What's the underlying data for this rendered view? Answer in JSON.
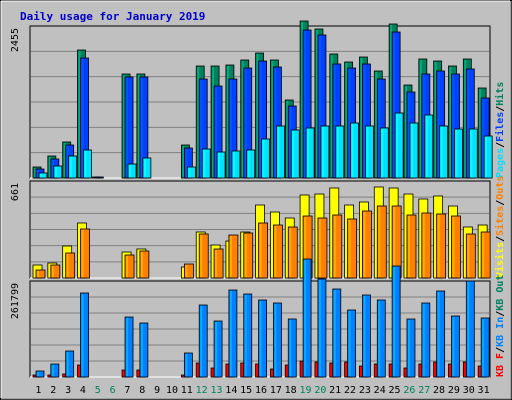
{
  "title": "Daily usage for January 2019",
  "colors": {
    "frame_bg": "#c0c0c0",
    "plot_bg": "#c0c0c0",
    "title_text": "#0000cc",
    "hits": "#00805c",
    "files": "#0040ff",
    "pages": "#00e0ff",
    "visits": "#ffff00",
    "sites": "#ff8000",
    "kbin": "#0080ff",
    "kbout": "#ff0000",
    "weekday_label": "#000000",
    "weekend_label": "#00805c"
  },
  "chart_data": [
    {
      "type": "bar",
      "panel": "requests",
      "ymax_label": "2455",
      "ymax": 2455,
      "legend": [
        "Pages",
        "Files",
        "Hits"
      ],
      "x": [
        1,
        2,
        3,
        4,
        5,
        6,
        7,
        8,
        9,
        10,
        11,
        12,
        13,
        14,
        15,
        16,
        17,
        18,
        19,
        20,
        21,
        22,
        23,
        24,
        25,
        26,
        27,
        28,
        29,
        30,
        31
      ],
      "series": [
        {
          "name": "Hits",
          "values": [
            180,
            365,
            600,
            2120,
            20,
            0,
            1720,
            1720,
            0,
            0,
            540,
            1860,
            1850,
            1880,
            1950,
            2080,
            1950,
            1300,
            2610,
            2470,
            2060,
            1930,
            2010,
            1770,
            2560,
            1540,
            1980,
            1940,
            1850,
            1980,
            1500
          ]
        },
        {
          "name": "Files",
          "values": [
            150,
            310,
            550,
            1990,
            20,
            0,
            1670,
            1680,
            0,
            0,
            500,
            1640,
            1530,
            1650,
            1820,
            1940,
            1840,
            1200,
            2460,
            2380,
            1890,
            1820,
            1890,
            1650,
            2420,
            1430,
            1730,
            1780,
            1730,
            1800,
            1330
          ]
        },
        {
          "name": "Pages",
          "values": [
            90,
            200,
            360,
            460,
            0,
            0,
            230,
            330,
            0,
            0,
            190,
            480,
            430,
            440,
            470,
            640,
            870,
            790,
            830,
            860,
            870,
            910,
            860,
            830,
            1080,
            920,
            1040,
            870,
            810,
            810,
            700
          ]
        }
      ]
    },
    {
      "type": "bar",
      "panel": "visitors",
      "ymax_label": "661",
      "ymax": 661,
      "legend": [
        "Visits",
        "Sites",
        "Outs"
      ],
      "x": [
        1,
        2,
        3,
        4,
        5,
        6,
        7,
        8,
        9,
        10,
        11,
        12,
        13,
        14,
        15,
        16,
        17,
        18,
        19,
        20,
        21,
        22,
        23,
        24,
        25,
        26,
        27,
        28,
        29,
        30,
        31
      ],
      "series": [
        {
          "name": "Visits",
          "values": [
            90,
            105,
            230,
            390,
            0,
            0,
            185,
            205,
            0,
            0,
            80,
            330,
            235,
            260,
            330,
            520,
            470,
            430,
            590,
            595,
            640,
            520,
            540,
            650,
            640,
            600,
            560,
            585,
            510,
            360,
            380
          ]
        },
        {
          "name": "Sites",
          "values": [
            60,
            90,
            175,
            345,
            0,
            0,
            165,
            190,
            0,
            0,
            100,
            310,
            205,
            305,
            320,
            390,
            375,
            360,
            440,
            430,
            445,
            420,
            475,
            510,
            510,
            450,
            460,
            455,
            440,
            310,
            330
          ]
        }
      ]
    },
    {
      "type": "bar",
      "panel": "kbytes",
      "ymax_label": "261799",
      "ymax": 261799,
      "legend": [
        "KB F",
        "KB In",
        "KB Out"
      ],
      "x": [
        1,
        2,
        3,
        4,
        5,
        6,
        7,
        8,
        9,
        10,
        11,
        12,
        13,
        14,
        15,
        16,
        17,
        18,
        19,
        20,
        21,
        22,
        23,
        24,
        25,
        26,
        27,
        28,
        29,
        30,
        31
      ],
      "series": [
        {
          "name": "KB F",
          "values": [
            5000,
            6000,
            9000,
            35000,
            0,
            0,
            19000,
            19000,
            0,
            0,
            6000,
            39000,
            25000,
            38000,
            40000,
            38000,
            23000,
            35000,
            45000,
            42000,
            40000,
            43000,
            30000,
            37000,
            38000,
            25000,
            38000,
            42000,
            36000,
            44000,
            32000
          ]
        },
        {
          "name": "KB In",
          "values": [
            16000,
            36000,
            74000,
            240000,
            0,
            0,
            170000,
            155000,
            0,
            0,
            69000,
            205000,
            160000,
            247000,
            237000,
            218000,
            212000,
            165000,
            335000,
            278000,
            250000,
            190000,
            232000,
            220000,
            315000,
            165000,
            210000,
            244000,
            174000,
            273000,
            168000
          ]
        }
      ]
    }
  ],
  "x_labels": [
    "1",
    "2",
    "3",
    "4",
    "5",
    "6",
    "7",
    "8",
    "9",
    "10",
    "11",
    "12",
    "13",
    "14",
    "15",
    "16",
    "17",
    "18",
    "19",
    "20",
    "21",
    "22",
    "23",
    "24",
    "25",
    "26",
    "27",
    "28",
    "29",
    "30",
    "31"
  ],
  "weekend_days": [
    5,
    6,
    12,
    13,
    19,
    20,
    26,
    27
  ]
}
